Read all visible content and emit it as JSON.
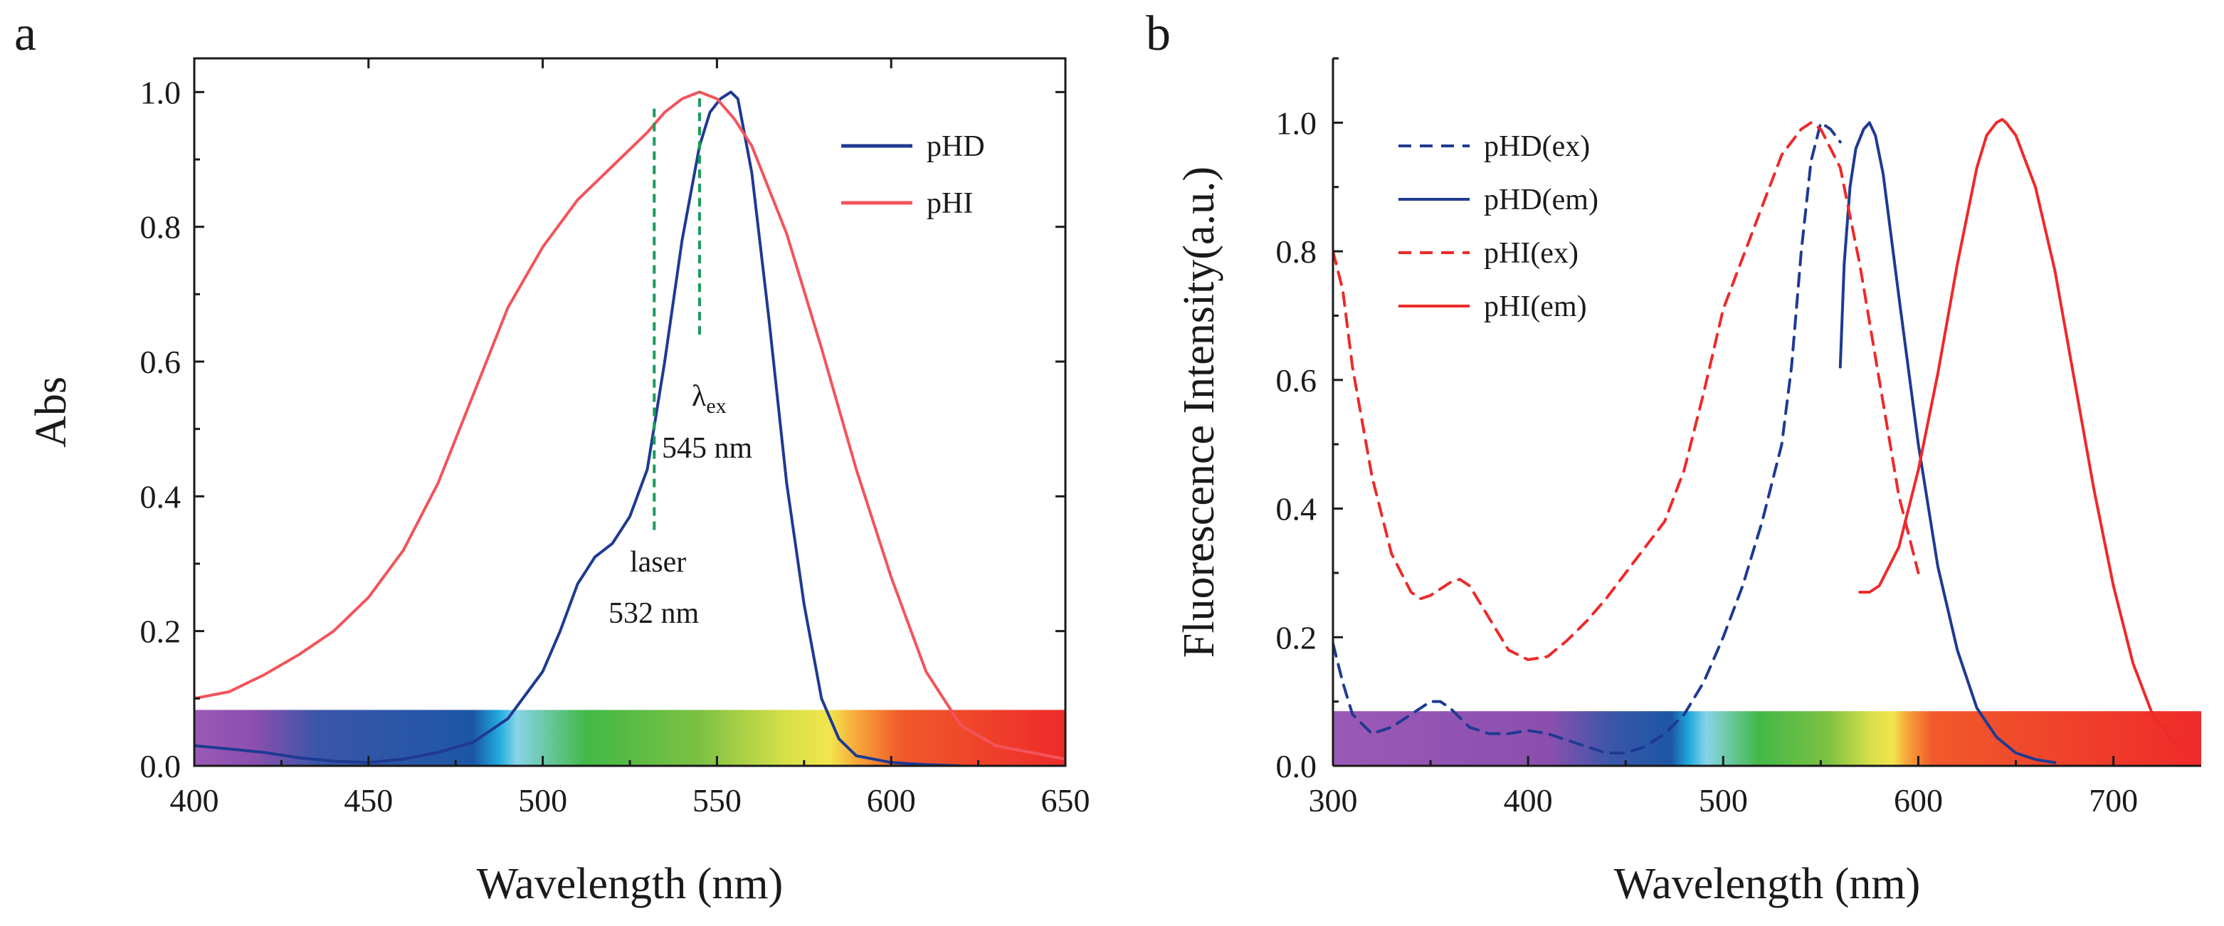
{
  "figure": {
    "panel_a_label": "a",
    "panel_b_label": "b"
  },
  "colors": {
    "pHD": "#1f3a93",
    "pHI": "#f2545b",
    "pHI_em": "#ee2a2a",
    "laser_line": "#1a9a5a",
    "axis": "#1a1a1a"
  },
  "chart_data": [
    {
      "type": "line",
      "panel": "a",
      "xlabel": "Wavelength (nm)",
      "ylabel": "Abs",
      "xlim": [
        400,
        650
      ],
      "ylim": [
        0,
        1.05
      ],
      "xticks": [
        400,
        450,
        500,
        550,
        600,
        650
      ],
      "xtick_labels": [
        "400",
        "450",
        "500",
        "550",
        "600",
        "650"
      ],
      "yticks": [
        0,
        0.2,
        0.4,
        0.6,
        0.8,
        1.0
      ],
      "ytick_labels": [
        "0.0",
        "0.2",
        "0.4",
        "0.6",
        "0.8",
        "1.0"
      ],
      "legend_position": "top-right",
      "spectrum_bar": {
        "x_range": [
          400,
          650
        ],
        "y_range": [
          0,
          0.083
        ]
      },
      "series": [
        {
          "name": "pHD",
          "color": "#1f3a93",
          "style": "solid",
          "x": [
            400,
            410,
            420,
            430,
            440,
            450,
            460,
            470,
            480,
            490,
            500,
            505,
            510,
            515,
            520,
            525,
            530,
            535,
            540,
            545,
            548,
            551,
            554,
            556,
            560,
            565,
            570,
            575,
            580,
            585,
            590,
            600,
            610,
            620
          ],
          "y": [
            0.03,
            0.025,
            0.02,
            0.012,
            0.007,
            0.005,
            0.01,
            0.02,
            0.035,
            0.07,
            0.14,
            0.2,
            0.27,
            0.31,
            0.33,
            0.37,
            0.44,
            0.6,
            0.78,
            0.92,
            0.97,
            0.99,
            1.0,
            0.99,
            0.88,
            0.66,
            0.42,
            0.24,
            0.1,
            0.04,
            0.015,
            0.005,
            0.002,
            0.0
          ]
        },
        {
          "name": "pHI",
          "color": "#f2545b",
          "style": "solid",
          "x": [
            400,
            410,
            420,
            430,
            440,
            450,
            460,
            470,
            480,
            490,
            500,
            510,
            520,
            530,
            535,
            540,
            545,
            550,
            555,
            560,
            570,
            580,
            590,
            600,
            610,
            620,
            630,
            640,
            650
          ],
          "y": [
            0.1,
            0.11,
            0.135,
            0.165,
            0.2,
            0.25,
            0.32,
            0.42,
            0.55,
            0.68,
            0.77,
            0.84,
            0.89,
            0.94,
            0.97,
            0.99,
            1.0,
            0.99,
            0.96,
            0.92,
            0.79,
            0.62,
            0.44,
            0.28,
            0.14,
            0.06,
            0.03,
            0.02,
            0.01
          ]
        }
      ],
      "vlines": [
        {
          "name": "laser",
          "x": 532,
          "y_range": [
            0.35,
            0.98
          ],
          "color": "#1a9a5a",
          "style": "dashed"
        },
        {
          "name": "lambda_ex",
          "x": 545,
          "y_range": [
            0.64,
            1.0
          ],
          "color": "#1a9a5a",
          "style": "dashed"
        }
      ],
      "annotations": {
        "lambda_symbol": "λ",
        "lambda_sub": "ex",
        "lambda_value": "545 nm",
        "laser_label": "laser",
        "laser_value": "532 nm"
      }
    },
    {
      "type": "line",
      "panel": "b",
      "xlabel": "Wavelength (nm)",
      "ylabel": "Fluorescence Intensity(a.u.)",
      "xlim": [
        300,
        745
      ],
      "ylim": [
        0,
        1.1
      ],
      "xticks": [
        300,
        400,
        500,
        600,
        700
      ],
      "xtick_labels": [
        "300",
        "400",
        "500",
        "600",
        "700"
      ],
      "yticks": [
        0,
        0.2,
        0.4,
        0.6,
        0.8,
        1.0
      ],
      "ytick_labels": [
        "0.0",
        "0.2",
        "0.4",
        "0.6",
        "0.8",
        "1.0"
      ],
      "legend_position": "top-left",
      "spectrum_bar": {
        "x_range": [
          300,
          745
        ],
        "y_range": [
          0,
          0.085
        ]
      },
      "series": [
        {
          "name": "pHD(ex)",
          "color": "#1f3a93",
          "style": "dashed",
          "x": [
            300,
            305,
            310,
            320,
            330,
            340,
            350,
            355,
            360,
            370,
            380,
            390,
            400,
            410,
            420,
            430,
            440,
            450,
            460,
            470,
            480,
            490,
            500,
            510,
            520,
            530,
            535,
            540,
            545,
            550,
            555,
            560
          ],
          "y": [
            0.19,
            0.13,
            0.08,
            0.05,
            0.06,
            0.08,
            0.1,
            0.1,
            0.09,
            0.06,
            0.05,
            0.05,
            0.055,
            0.05,
            0.04,
            0.03,
            0.02,
            0.02,
            0.03,
            0.05,
            0.08,
            0.13,
            0.2,
            0.28,
            0.38,
            0.5,
            0.62,
            0.8,
            0.94,
            1.0,
            0.99,
            0.97
          ]
        },
        {
          "name": "pHD(em)",
          "color": "#1f3a93",
          "style": "solid",
          "x": [
            560,
            562,
            565,
            568,
            572,
            575,
            578,
            582,
            590,
            600,
            610,
            620,
            630,
            640,
            650,
            660,
            670
          ],
          "y": [
            0.62,
            0.78,
            0.9,
            0.96,
            0.99,
            1.0,
            0.98,
            0.92,
            0.73,
            0.5,
            0.31,
            0.18,
            0.09,
            0.045,
            0.02,
            0.01,
            0.005
          ]
        },
        {
          "name": "pHI(ex)",
          "color": "#ee2a2a",
          "style": "dashed",
          "x": [
            300,
            305,
            310,
            320,
            330,
            340,
            345,
            350,
            360,
            365,
            370,
            380,
            390,
            400,
            410,
            420,
            430,
            440,
            450,
            460,
            470,
            480,
            490,
            500,
            510,
            520,
            530,
            540,
            545,
            550,
            560,
            570,
            580,
            590,
            600
          ],
          "y": [
            0.8,
            0.74,
            0.62,
            0.45,
            0.33,
            0.27,
            0.26,
            0.265,
            0.285,
            0.29,
            0.28,
            0.23,
            0.18,
            0.165,
            0.17,
            0.195,
            0.225,
            0.26,
            0.3,
            0.34,
            0.38,
            0.46,
            0.58,
            0.71,
            0.79,
            0.87,
            0.95,
            0.99,
            1.0,
            0.99,
            0.93,
            0.78,
            0.6,
            0.42,
            0.3
          ]
        },
        {
          "name": "pHI(em)",
          "color": "#ee2a2a",
          "style": "solid",
          "x": [
            570,
            575,
            580,
            590,
            600,
            610,
            620,
            630,
            635,
            640,
            643,
            645,
            650,
            660,
            670,
            680,
            690,
            700,
            710,
            720,
            730,
            740,
            745
          ],
          "y": [
            0.27,
            0.27,
            0.28,
            0.34,
            0.46,
            0.61,
            0.78,
            0.93,
            0.98,
            1.0,
            1.005,
            1.0,
            0.98,
            0.9,
            0.77,
            0.6,
            0.43,
            0.28,
            0.16,
            0.08,
            0.04,
            0.02,
            0.01
          ]
        }
      ]
    }
  ]
}
